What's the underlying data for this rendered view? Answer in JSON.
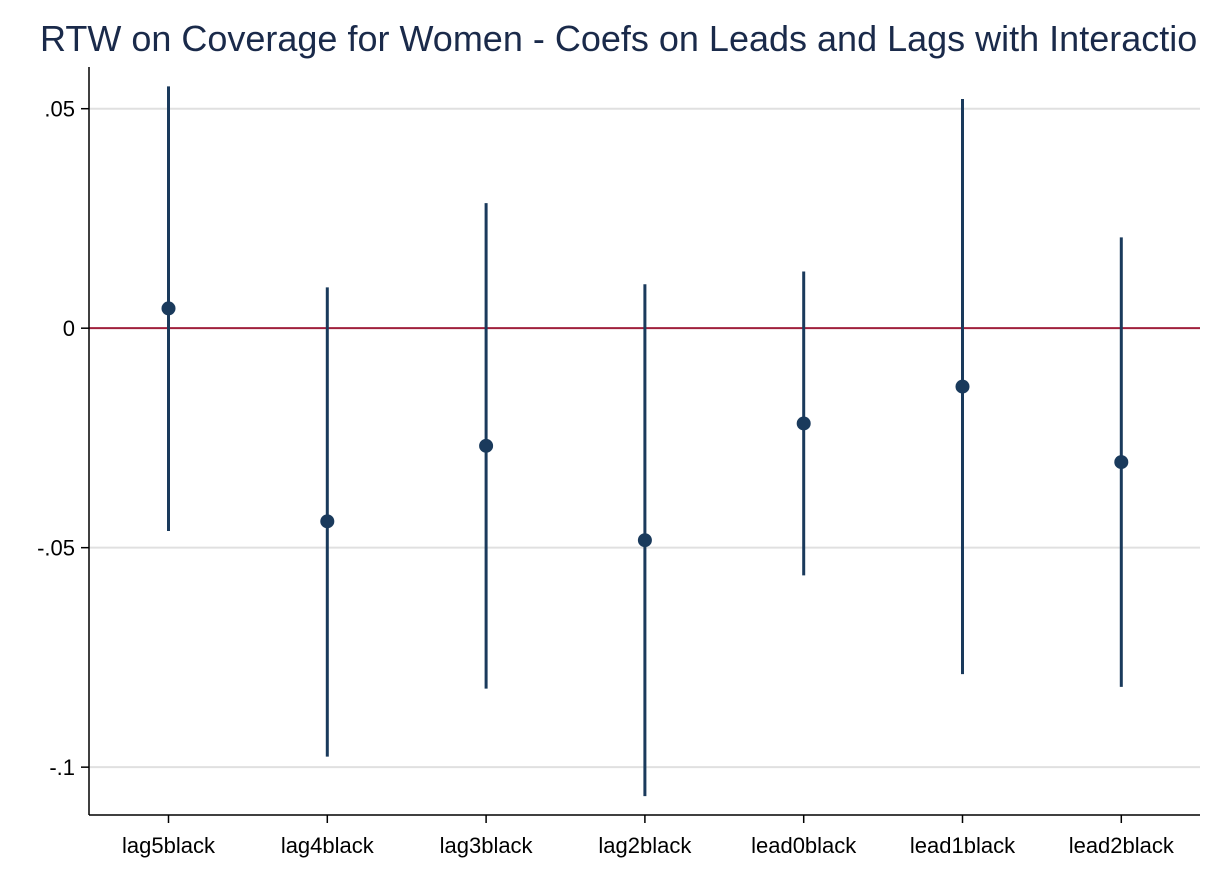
{
  "chart_data": {
    "type": "scatter",
    "title": "RTW on Coverage for Women - Coefs on Leads and Lags with Interactio",
    "xlabel": "",
    "ylabel": "",
    "categories": [
      "lag5black",
      "lag4black",
      "lag3black",
      "lag2black",
      "lead0black",
      "lead1black",
      "lead2black"
    ],
    "series": [
      {
        "estimates": [
          0.0045,
          -0.044,
          -0.0268,
          -0.0483,
          -0.0217,
          -0.0133,
          -0.0305
        ],
        "ci_lower": [
          -0.0462,
          -0.0976,
          -0.0821,
          -0.1066,
          -0.0563,
          -0.0788,
          -0.0817
        ],
        "ci_upper": [
          0.0551,
          0.0093,
          0.0285,
          0.01,
          0.0129,
          0.0522,
          0.0207
        ]
      }
    ],
    "ylim": [
      -0.1109,
      0.0595
    ],
    "yticks": [
      0.05,
      0,
      -0.05,
      -0.1
    ],
    "ytick_labels": [
      ".05",
      "0",
      "-.05",
      "-.1"
    ],
    "reference_line_y": 0,
    "grid": true,
    "colors": {
      "marker": "#1a3a5c",
      "reference_line": "#a0203c",
      "grid": "#e0e0e0",
      "title": "#1a2a4a"
    }
  }
}
